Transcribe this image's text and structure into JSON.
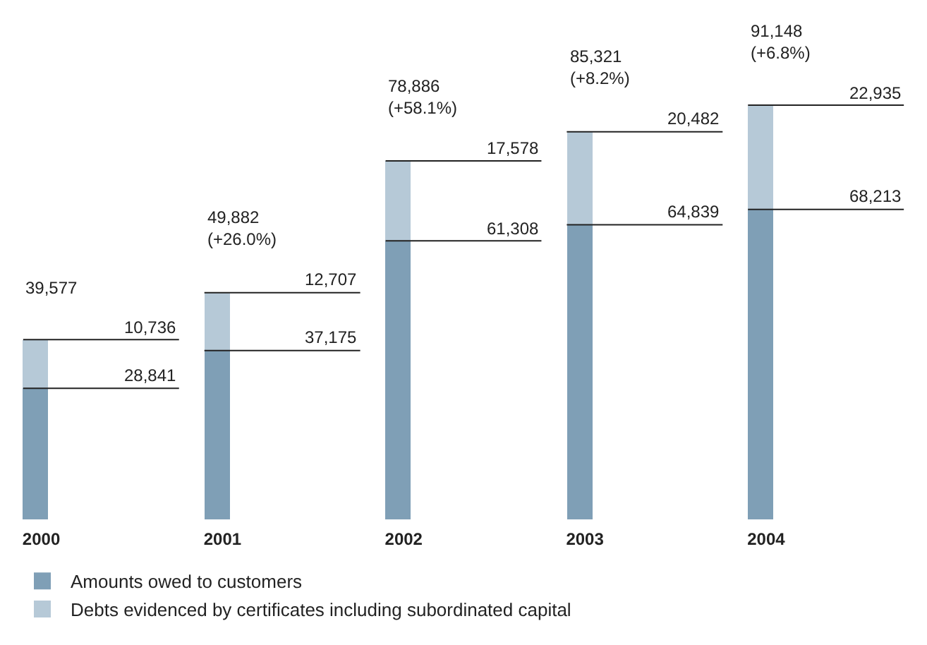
{
  "chart_data": {
    "type": "bar",
    "stacked": true,
    "categories": [
      "2000",
      "2001",
      "2002",
      "2003",
      "2004"
    ],
    "series": [
      {
        "name": "Amounts owed to customers",
        "color": "#7f9fb6",
        "values": [
          28841,
          37175,
          61308,
          64839,
          68213
        ],
        "value_labels": [
          "28,841",
          "37,175",
          "61,308",
          "64,839",
          "68,213"
        ]
      },
      {
        "name": "Debts evidenced by certificates including subordinated capital",
        "color": "#b6c9d7",
        "values": [
          10736,
          12707,
          17578,
          20482,
          22935
        ],
        "value_labels": [
          "10,736",
          "12,707",
          "17,578",
          "20,482",
          "22,935"
        ]
      }
    ],
    "totals": [
      "39,577",
      "49,882\n(+26.0%)",
      "78,886\n(+58.1%)",
      "85,321\n(+8.2%)",
      "91,148\n(+6.8%)"
    ],
    "legend": "bottom",
    "tick_labels": "x"
  }
}
